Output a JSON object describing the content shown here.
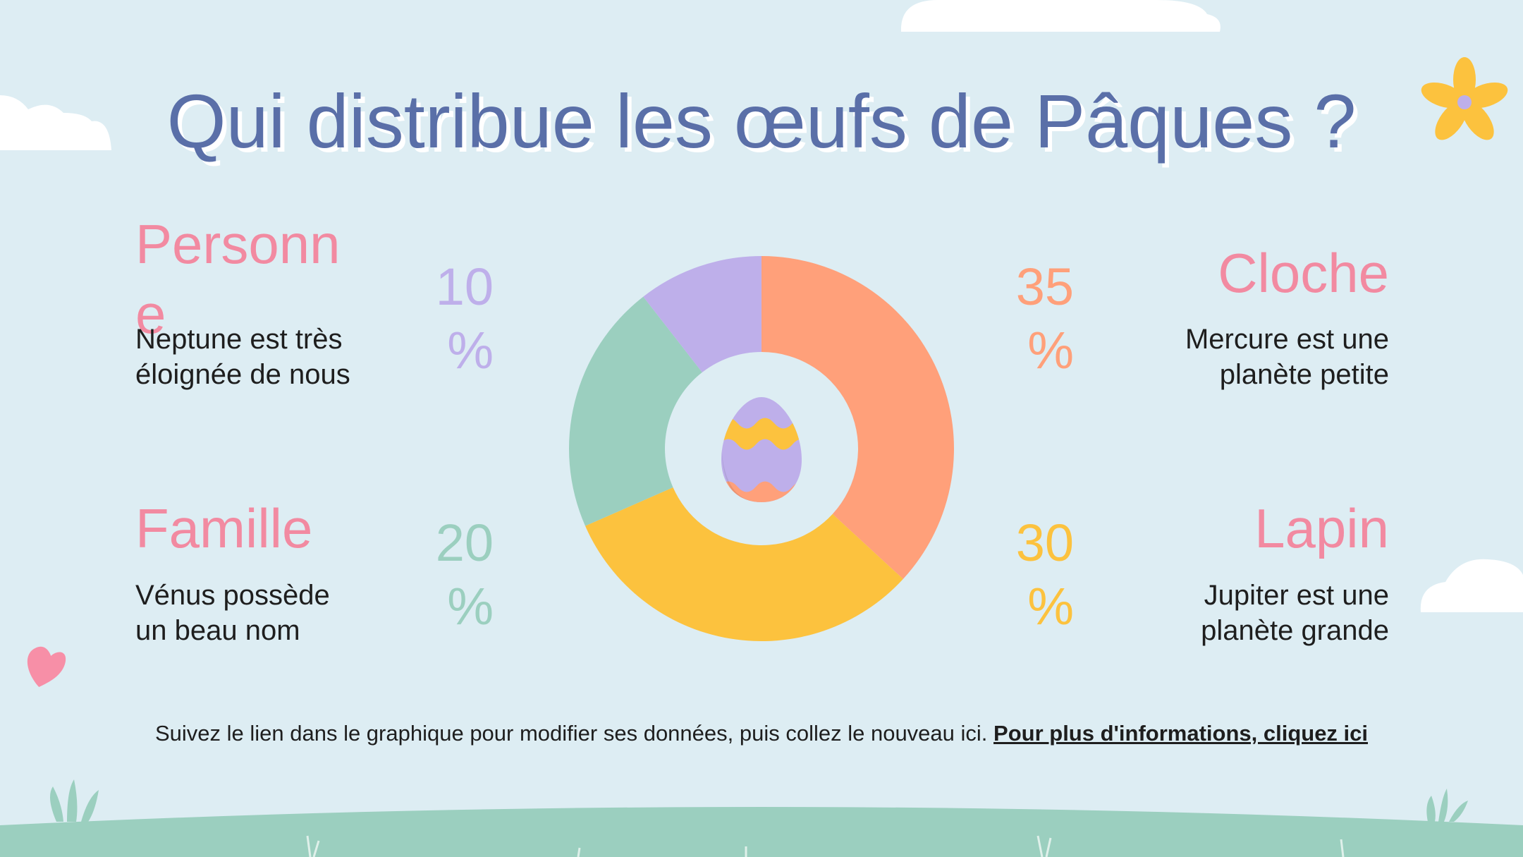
{
  "title": "Qui distribue les œufs de Pâques ?",
  "chart_data": {
    "type": "pie",
    "donut": true,
    "categories": [
      "Cloche",
      "Lapin",
      "Famille",
      "Personne"
    ],
    "values": [
      35,
      30,
      20,
      10
    ],
    "labels": [
      "35 %",
      "30 %",
      "20 %",
      "10 %"
    ],
    "colors": [
      "#ffa07a",
      "#fcc23e",
      "#9bcfbf",
      "#beafea"
    ],
    "descriptions": [
      "Mercure est une planète petite",
      "Jupiter est une planète grande",
      "Vénus possède un beau nom",
      "Neptune est très éloignée de nous"
    ]
  },
  "items": {
    "personne": {
      "label": "Personne",
      "percent": "10",
      "unit": "%",
      "desc_line1": "Neptune est très",
      "desc_line2": "éloignée de nous",
      "color": "#beafea"
    },
    "famille": {
      "label": "Famille",
      "percent": "20",
      "unit": "%",
      "desc_line1": "Vénus possède",
      "desc_line2": "un beau nom",
      "color": "#9bcfbf"
    },
    "cloche": {
      "label": "Cloche",
      "percent": "35",
      "unit": "%",
      "desc_line1": "Mercure est une",
      "desc_line2": "planète petite",
      "color": "#ffa07a"
    },
    "lapin": {
      "label": "Lapin",
      "percent": "30",
      "unit": "%",
      "desc_line1": "Jupiter est une",
      "desc_line2": "planète grande",
      "color": "#fcc23e"
    }
  },
  "footer": {
    "text": "Suivez le lien dans le graphique pour modifier ses données, puis collez le nouveau ici.",
    "link": "Pour plus d'informations, cliquez ici"
  },
  "colors": {
    "background": "#ddedf3",
    "title": "#5a6fa8",
    "label": "#f28aa1",
    "grass": "#9bcfbf"
  }
}
